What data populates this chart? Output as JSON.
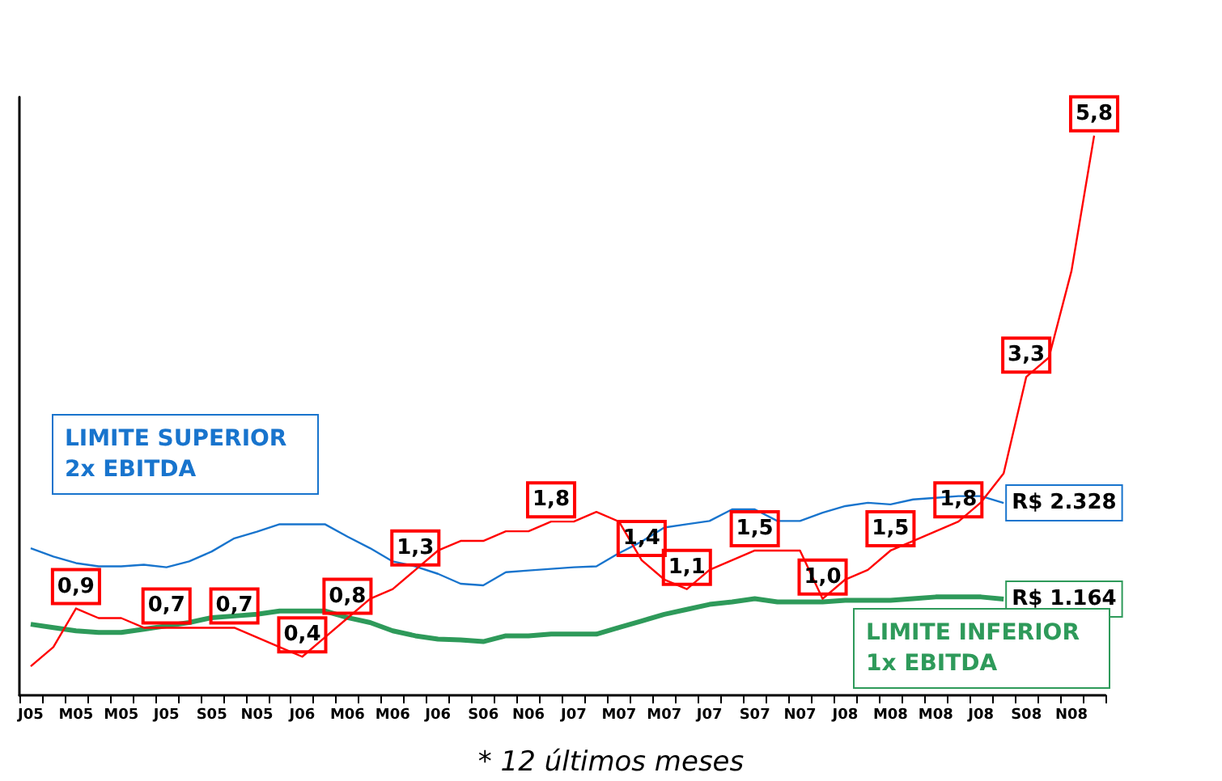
{
  "chart_data": {
    "type": "line",
    "marker": "none",
    "grid": false,
    "tick_labels": "x",
    "ylim": [
      0,
      7240
    ],
    "y2lim": [
      0,
      6.2
    ],
    "categories": [
      "J05",
      null,
      "M05",
      null,
      "M05",
      null,
      "J05",
      null,
      "S05",
      null,
      "N05",
      null,
      "J06",
      null,
      "M06",
      null,
      "M06",
      null,
      "J06",
      null,
      "S06",
      null,
      "N06",
      null,
      "J07",
      null,
      "M07",
      null,
      "M07",
      null,
      "J07",
      null,
      "S07",
      null,
      "N07",
      null,
      "J08",
      null,
      "M08",
      null,
      "M08",
      null,
      "J08",
      null,
      "S08",
      null,
      "N08",
      null
    ],
    "series": [
      {
        "name": "LIMITE SUPERIOR 2x EBITDA",
        "color": "#1874cd",
        "values": [
          1780,
          1680,
          1600,
          1560,
          1560,
          1580,
          1550,
          1620,
          1740,
          1900,
          1980,
          2070,
          2070,
          2070,
          1920,
          1780,
          1620,
          1560,
          1470,
          1350,
          1330,
          1490,
          1510,
          1530,
          1550,
          1560,
          1720,
          1860,
          2030,
          2070,
          2110,
          2250,
          2250,
          2110,
          2110,
          2210,
          2290,
          2330,
          2310,
          2370,
          2390,
          2410,
          2410,
          2328,
          null,
          null,
          null,
          null
        ],
        "value_labels": [
          null,
          null,
          null,
          null,
          null,
          null,
          null,
          null,
          null,
          null,
          null,
          null,
          null,
          null,
          null,
          null,
          null,
          null,
          null,
          null,
          null,
          null,
          null,
          null,
          null,
          null,
          null,
          null,
          null,
          null,
          null,
          null,
          null,
          null,
          null,
          null,
          null,
          null,
          null,
          null,
          null,
          null,
          null,
          "R$ 2.328",
          null,
          null,
          null,
          null
        ]
      },
      {
        "name": "LIMITE INFERIOR 1x EBITDA",
        "color": "#2e9a5a",
        "values": [
          860,
          820,
          780,
          760,
          760,
          800,
          840,
          880,
          940,
          960,
          980,
          1020,
          1020,
          1020,
          940,
          880,
          780,
          720,
          680,
          670,
          650,
          720,
          720,
          740,
          740,
          740,
          820,
          900,
          980,
          1040,
          1100,
          1130,
          1170,
          1130,
          1130,
          1130,
          1150,
          1150,
          1150,
          1170,
          1190,
          1190,
          1190,
          1164,
          null,
          null,
          null,
          null
        ],
        "value_labels": [
          null,
          null,
          null,
          null,
          null,
          null,
          null,
          null,
          null,
          null,
          null,
          null,
          null,
          null,
          null,
          null,
          null,
          null,
          null,
          null,
          null,
          null,
          null,
          null,
          null,
          null,
          null,
          null,
          null,
          null,
          null,
          null,
          null,
          null,
          null,
          null,
          null,
          null,
          null,
          null,
          null,
          null,
          null,
          "R$ 1.164",
          null,
          null,
          null,
          null
        ]
      },
      {
        "color": "#ff0000",
        "axis": "y2",
        "values": [
          0.3,
          0.5,
          0.9,
          0.8,
          0.8,
          0.7,
          0.7,
          0.7,
          0.7,
          0.7,
          0.6,
          0.5,
          0.4,
          0.6,
          0.8,
          1.0,
          1.1,
          1.3,
          1.5,
          1.6,
          1.6,
          1.7,
          1.7,
          1.8,
          1.8,
          1.9,
          1.8,
          1.4,
          1.2,
          1.1,
          1.3,
          1.4,
          1.5,
          1.5,
          1.5,
          1.0,
          1.2,
          1.3,
          1.5,
          1.6,
          1.7,
          1.8,
          2.0,
          2.3,
          3.3,
          3.5,
          4.4,
          5.8
        ],
        "value_labels": [
          null,
          null,
          "0,9",
          null,
          null,
          null,
          "0,7",
          null,
          null,
          "0,7",
          null,
          null,
          "0,4",
          null,
          "0,8",
          null,
          null,
          "1,3",
          null,
          null,
          null,
          null,
          null,
          "1,8",
          null,
          null,
          null,
          "1,4",
          null,
          "1,1",
          null,
          null,
          "1,5",
          null,
          null,
          "1,0",
          null,
          null,
          "1,5",
          null,
          null,
          "1,8",
          null,
          null,
          "3,3",
          null,
          null,
          "5,8"
        ]
      }
    ],
    "annotations": [
      "* 12 últimos meses"
    ]
  }
}
